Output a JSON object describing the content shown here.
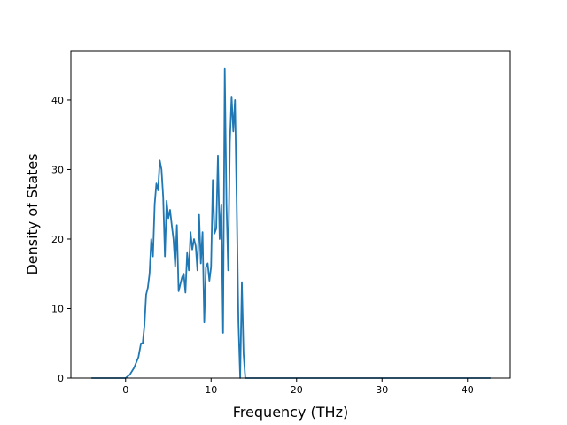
{
  "chart_data": {
    "type": "line",
    "title": "",
    "xlabel": "Frequency (THz)",
    "ylabel": "Density of States",
    "xlim": [
      -6.4,
      45.0
    ],
    "ylim": [
      0,
      47
    ],
    "xticks": [
      0,
      10,
      20,
      30,
      40
    ],
    "yticks": [
      0,
      10,
      20,
      30,
      40
    ],
    "grid": false,
    "legend": "none",
    "line_color": "#1f77b4",
    "series": [
      {
        "x": [
          -4.0,
          0.0,
          0.5,
          1.0,
          1.5,
          1.8,
          2.0,
          2.2,
          2.4,
          2.6,
          2.8,
          3.0,
          3.2,
          3.4,
          3.6,
          3.8,
          4.0,
          4.2,
          4.4,
          4.6,
          4.8,
          5.0,
          5.2,
          5.4,
          5.6,
          5.8,
          6.0,
          6.2,
          6.4,
          6.6,
          6.8,
          7.0,
          7.2,
          7.4,
          7.6,
          7.8,
          8.0,
          8.2,
          8.4,
          8.6,
          8.8,
          9.0,
          9.2,
          9.4,
          9.6,
          9.8,
          10.0,
          10.2,
          10.4,
          10.6,
          10.8,
          11.0,
          11.2,
          11.4,
          11.6,
          11.8,
          12.0,
          12.2,
          12.4,
          12.6,
          12.8,
          13.0,
          13.2,
          13.4,
          13.6,
          13.8,
          14.0,
          14.2,
          14.4,
          14.6,
          14.8,
          15.0,
          15.2,
          15.4,
          15.6,
          15.8,
          16.0,
          16.2,
          16.4,
          16.6,
          17.0,
          20.0,
          30.0,
          42.7
        ],
        "y": [
          0,
          0,
          0.5,
          1.5,
          3.0,
          5.0,
          5.0,
          7.5,
          12.0,
          13.0,
          15.0,
          20.0,
          17.5,
          25.0,
          28.0,
          27.0,
          31.3,
          30.0,
          26.0,
          17.5,
          25.5,
          23.0,
          24.2,
          22.0,
          20.0,
          16.0,
          22.0,
          12.5,
          13.5,
          14.5,
          15.0,
          12.3,
          18.0,
          15.5,
          21.0,
          18.5,
          20.0,
          19.0,
          15.5,
          23.5,
          16.5,
          21.0,
          8.0,
          16.0,
          16.5,
          14.0,
          16.0,
          28.5,
          20.8,
          21.5,
          32.0,
          20.0,
          25.0,
          6.5,
          44.5,
          25.0,
          15.5,
          34.0,
          40.5,
          35.5,
          40.0,
          25.0,
          8.0,
          0,
          13.8,
          3.5,
          0,
          0,
          0,
          0,
          0,
          0,
          0,
          0,
          0,
          0,
          0,
          0,
          0,
          0,
          0,
          0,
          0,
          0
        ]
      }
    ]
  }
}
